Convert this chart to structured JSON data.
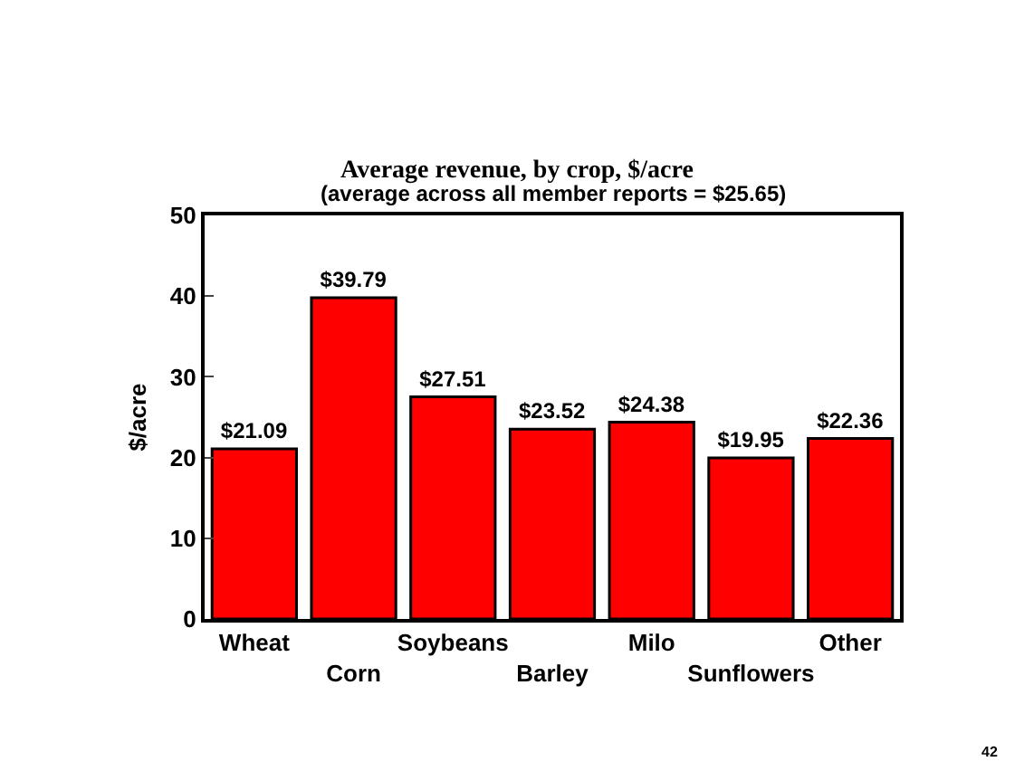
{
  "chart_data": {
    "type": "bar",
    "title": "Average revenue, by crop, $/acre",
    "subtitle": "(average across all member reports = $25.65)",
    "ylabel": "$/acre",
    "categories": [
      "Wheat",
      "Corn",
      "Soybeans",
      "Barley",
      "Milo",
      "Sunflowers",
      "Other"
    ],
    "values": [
      21.09,
      39.79,
      27.51,
      23.52,
      24.38,
      19.95,
      22.36
    ],
    "value_labels": [
      "$21.09",
      "$39.79",
      "$27.51",
      "$23.52",
      "$24.38",
      "$19.95",
      "$22.36"
    ],
    "color": "#ff0000",
    "ylim": [
      0,
      50
    ],
    "yticks": [
      0,
      10,
      20,
      30,
      40,
      50
    ],
    "grid": false,
    "legend": false,
    "annotations": [
      "42"
    ]
  }
}
